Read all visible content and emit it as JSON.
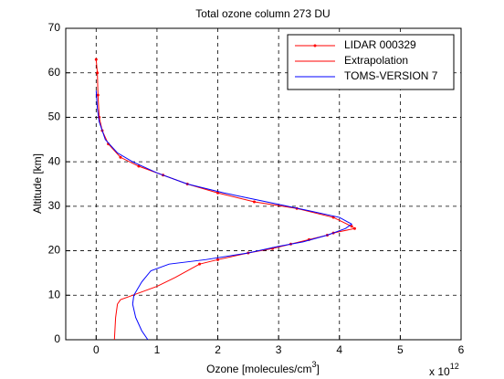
{
  "chart_data": {
    "type": "line",
    "title": "Total ozone column 273 DU",
    "xlabel_parts": [
      "Ozone [molecules/cm",
      "3",
      "]"
    ],
    "x_multiplier_parts": [
      "x 10",
      "12"
    ],
    "ylabel": "Altitude [km]",
    "xlim": [
      -0.5,
      6
    ],
    "xticks": [
      0,
      1,
      2,
      3,
      4,
      5,
      6
    ],
    "ylim": [
      0,
      70
    ],
    "yticks": [
      0,
      10,
      20,
      30,
      40,
      50,
      60,
      70
    ],
    "grid": true,
    "legend": "upper right",
    "series": [
      {
        "name": "LIDAR 000329",
        "color": "#ff0000",
        "marker": true,
        "x": [
          0.0,
          0.02,
          0.03,
          0.05,
          0.1,
          0.2,
          0.4,
          0.7,
          1.1,
          1.5,
          2.0,
          2.6,
          3.3,
          3.9,
          4.2,
          4.25,
          3.9,
          3.8,
          3.5,
          3.2,
          2.9,
          2.5,
          2.0,
          1.7
        ],
        "values": [
          63,
          60,
          55,
          50,
          47,
          44,
          41,
          39,
          37,
          35,
          33,
          31,
          29.5,
          27.5,
          25.5,
          25,
          24,
          23.5,
          22.5,
          21.5,
          20.5,
          19.5,
          18,
          17
        ]
      },
      {
        "name": "Extrapolation",
        "color": "#ff0000",
        "marker": false,
        "x": [
          1.7,
          1.3,
          1.0,
          0.6,
          0.4,
          0.35,
          0.32,
          0.3
        ],
        "values": [
          17,
          14,
          12,
          10,
          9,
          8,
          5,
          0
        ]
      },
      {
        "name": "TOMS-VERSION 7",
        "color": "#0000ff",
        "marker": false,
        "x": [
          0,
          0.02,
          0.05,
          0.15,
          0.35,
          0.6,
          1.0,
          1.5,
          2.1,
          2.8,
          3.5,
          4.0,
          4.2,
          4.1,
          3.8,
          3.4,
          3.0,
          2.5,
          1.8,
          1.2,
          0.9,
          0.75,
          0.62,
          0.6,
          0.65,
          0.75,
          0.85
        ],
        "values": [
          56,
          52,
          49,
          45,
          42,
          40,
          37.5,
          35,
          33,
          31,
          29,
          27.5,
          26,
          25,
          23.5,
          22,
          21,
          19.5,
          18,
          17,
          15.5,
          13,
          10,
          8,
          5,
          2,
          0
        ]
      }
    ]
  }
}
